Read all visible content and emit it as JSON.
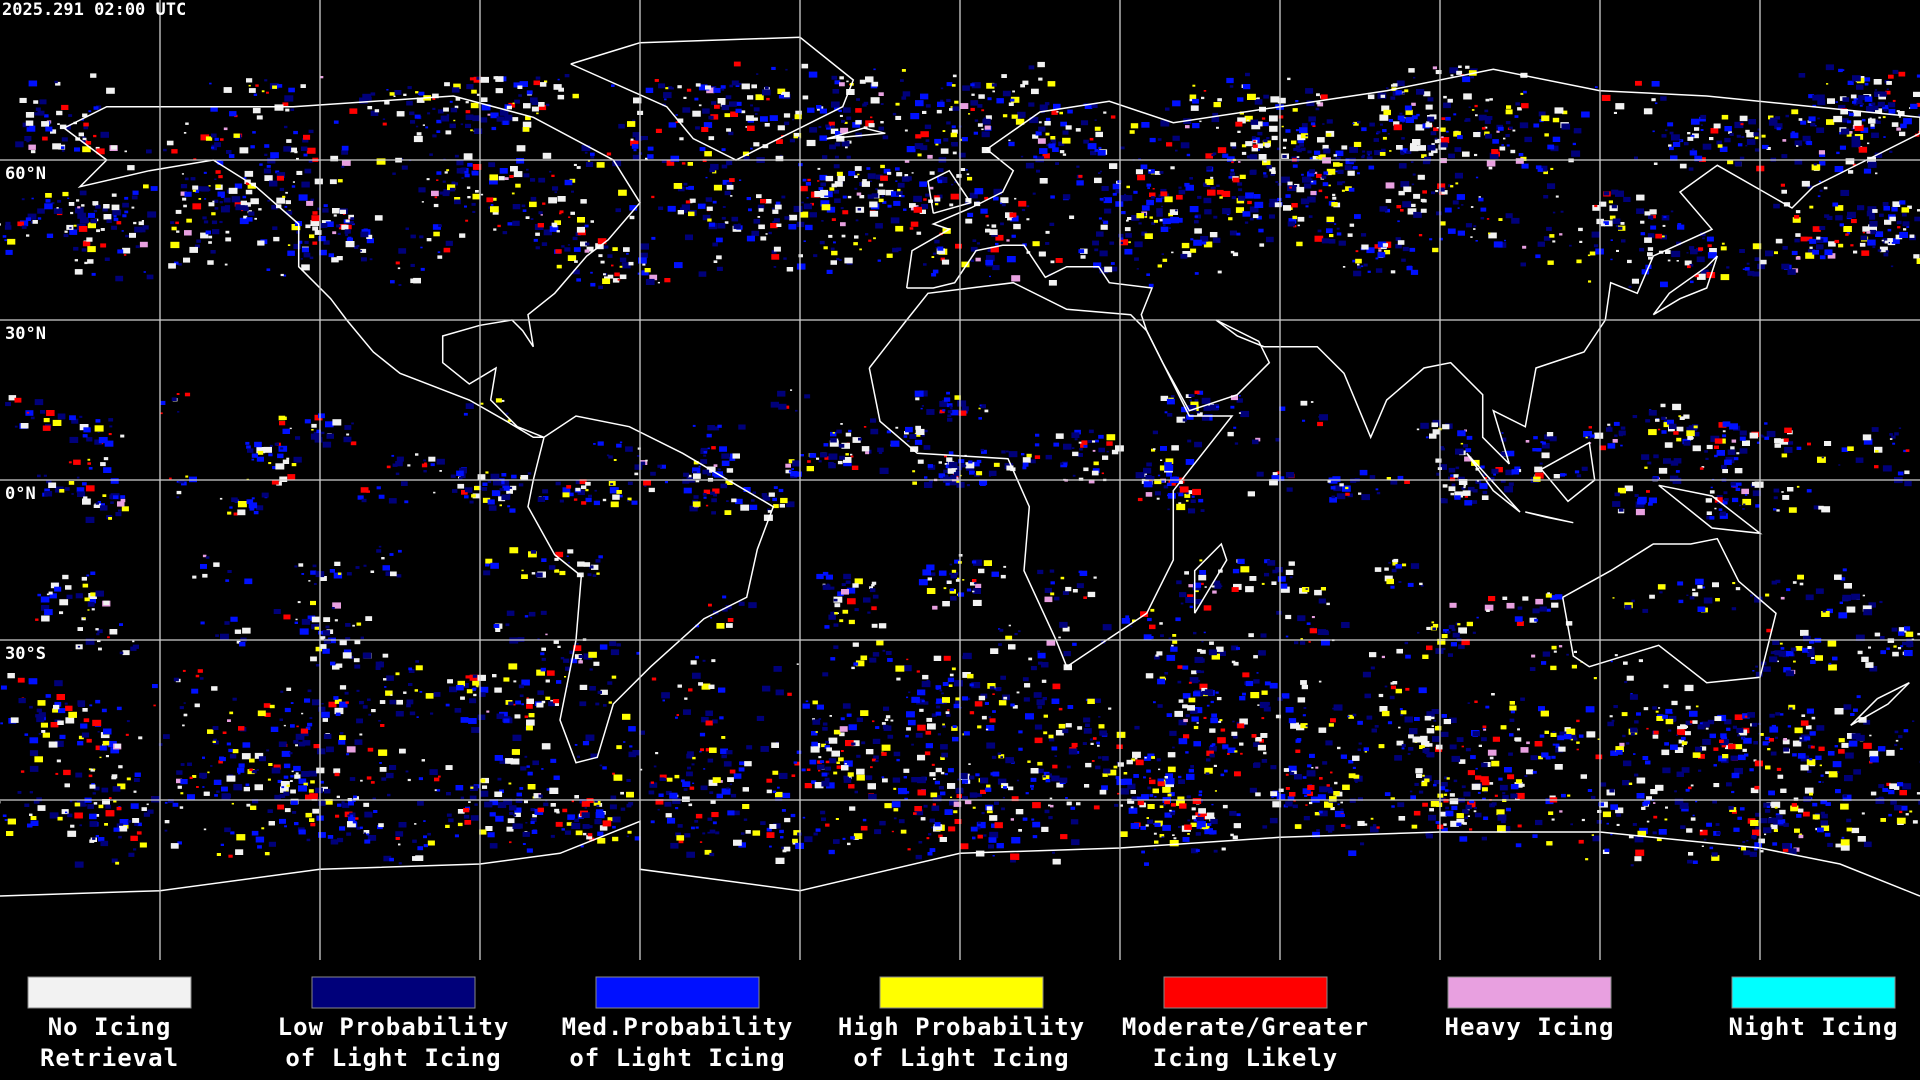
{
  "header": {
    "timestamp": "2025.291 02:00 UTC"
  },
  "map": {
    "latitude_labels": [
      "60°N",
      "30°N",
      "0°N",
      "30°S"
    ]
  },
  "legend": {
    "items": [
      {
        "color": "#f2f2f2",
        "label": [
          "No Icing",
          "Retrieval"
        ]
      },
      {
        "color": "#00007a",
        "label": [
          "Low Probability",
          "of Light Icing"
        ]
      },
      {
        "color": "#0010ff",
        "label": [
          "Med.Probability",
          "of Light Icing"
        ]
      },
      {
        "color": "#ffff00",
        "label": [
          "High Probability",
          "of Light Icing"
        ]
      },
      {
        "color": "#ff0000",
        "label": [
          "Moderate/Greater",
          "Icing Likely"
        ]
      },
      {
        "color": "#e8a0e0",
        "label": [
          "Heavy Icing",
          ""
        ]
      },
      {
        "color": "#00ffff",
        "label": [
          "Night Icing",
          ""
        ]
      }
    ]
  }
}
